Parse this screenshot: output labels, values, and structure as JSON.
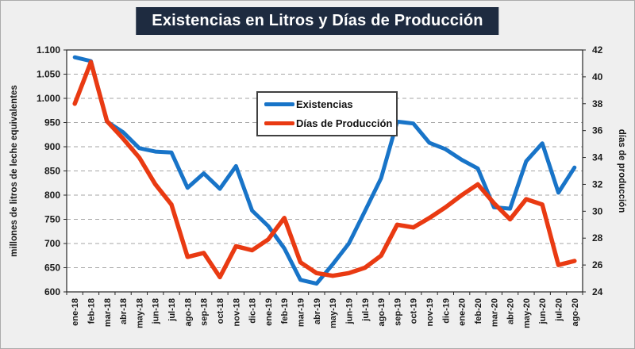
{
  "title": "Existencias en Litros y Días de Producción",
  "chart_data": {
    "type": "line",
    "title": "Existencias en Litros y Días de Producción",
    "categories": [
      "ene-18",
      "feb-18",
      "mar-18",
      "abr-18",
      "may-18",
      "jun-18",
      "jul-18",
      "ago-18",
      "sep-18",
      "oct-18",
      "nov-18",
      "dic-18",
      "ene-19",
      "feb-19",
      "mar-19",
      "abr-19",
      "may-19",
      "jun-19",
      "jul-19",
      "ago-19",
      "sep-19",
      "oct-19",
      "nov-19",
      "dic-19",
      "ene-20",
      "feb-20",
      "mar-20",
      "abr-20",
      "may-20",
      "jun-20",
      "jul-20",
      "ago-20"
    ],
    "series": [
      {
        "name": "Existencias",
        "axis": "left",
        "color": "#1874C8",
        "values": [
          1085,
          1077,
          952,
          930,
          897,
          890,
          888,
          815,
          845,
          813,
          860,
          768,
          736,
          690,
          625,
          617,
          657,
          700,
          767,
          835,
          952,
          948,
          908,
          895,
          873,
          855,
          775,
          772,
          870,
          907,
          805,
          857
        ]
      },
      {
        "name": "Días de Producción",
        "axis": "right",
        "color": "#E93A12",
        "values": [
          38.0,
          41.1,
          36.7,
          35.4,
          34.0,
          32.0,
          30.5,
          26.6,
          26.9,
          25.1,
          27.4,
          27.1,
          27.9,
          29.5,
          26.2,
          25.4,
          25.2,
          25.4,
          25.8,
          26.7,
          29.0,
          28.8,
          29.5,
          30.3,
          31.2,
          32.0,
          30.6,
          29.4,
          30.9,
          30.5,
          26.0,
          26.3
        ]
      }
    ],
    "y_left": {
      "label": "millones de litros de leche equivalentes",
      "min": 600,
      "max": 1100,
      "step": 50,
      "tick_labels": [
        "1.100",
        "1.050",
        "1.000",
        "950",
        "900",
        "850",
        "800",
        "750",
        "700",
        "650",
        "600"
      ]
    },
    "y_right": {
      "label": "días de producción",
      "min": 24,
      "max": 42,
      "step": 2,
      "tick_labels": [
        "42",
        "40",
        "38",
        "36",
        "34",
        "32",
        "30",
        "28",
        "26",
        "24"
      ]
    },
    "grid": "horizontal-dashed",
    "legend_position": "inside-top-center"
  },
  "legend": {
    "entries": [
      "Existencias",
      "Días de Producción"
    ]
  },
  "colors": {
    "title_bg": "#1e2b40",
    "title_text": "#ffffff",
    "background": "#efefef",
    "plot_bg": "#ffffff",
    "grid": "#a6a6a6",
    "axis": "#262626",
    "tick_text": "#1a1a1a",
    "series_existencias": "#1874C8",
    "series_dias": "#E93A12"
  }
}
